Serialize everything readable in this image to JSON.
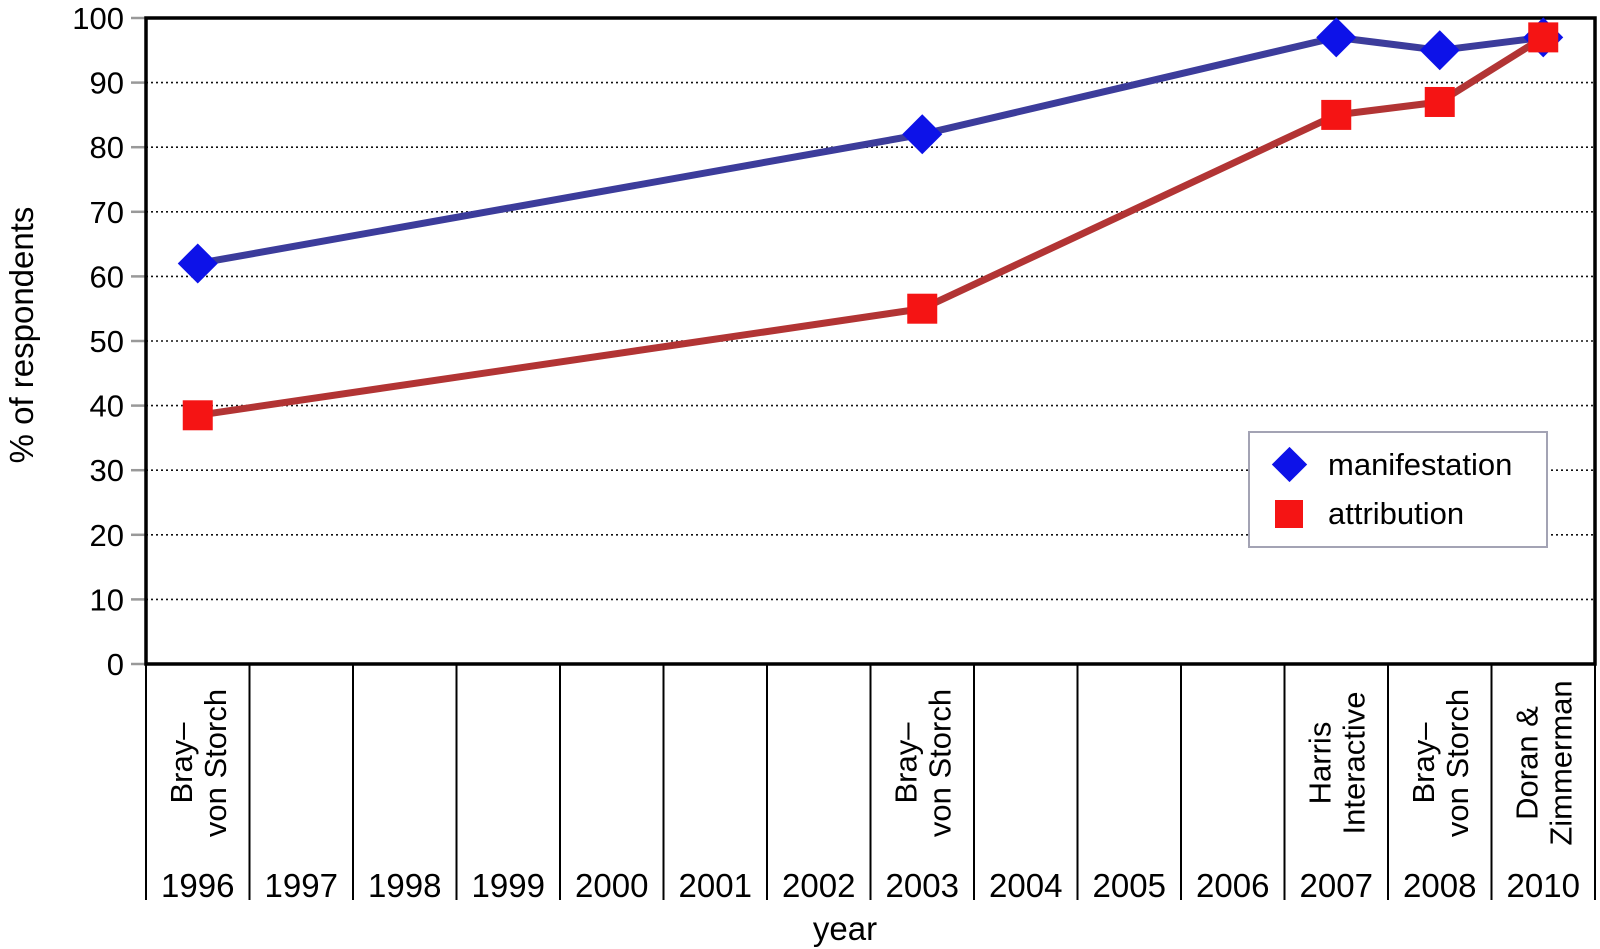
{
  "chart_data": {
    "type": "line",
    "title": "",
    "xlabel": "year",
    "ylabel": "% of respondents",
    "ylim": [
      0,
      100
    ],
    "ytick_step": 10,
    "grid": "horizontal dotted gridlines every 10, legend framed box middle-right",
    "legend_position": "middle-right",
    "categories": [
      "1996",
      "1997",
      "1998",
      "1999",
      "2000",
      "2001",
      "2002",
      "2003",
      "2004",
      "2005",
      "2006",
      "2007",
      "2008",
      "2010"
    ],
    "category_sources": {
      "1996": "Bray–\nvon Storch",
      "2003": "Bray–\nvon Storch",
      "2007": "Harris\nInteractive",
      "2008": "Bray–\nvon Storch",
      "2010": "Doran &\nZimmerman"
    },
    "series": [
      {
        "name": "manifestation",
        "marker": "diamond",
        "marker_color": "#0d12e8",
        "line_color": "#3c3c9b",
        "points": [
          {
            "x": "1996",
            "y": 62
          },
          {
            "x": "2003",
            "y": 82
          },
          {
            "x": "2007",
            "y": 97
          },
          {
            "x": "2008",
            "y": 95
          },
          {
            "x": "2010",
            "y": 97
          }
        ]
      },
      {
        "name": "attribution",
        "marker": "square",
        "marker_color": "#f51414",
        "line_color": "#b23434",
        "points": [
          {
            "x": "1996",
            "y": 38.5
          },
          {
            "x": "2003",
            "y": 55
          },
          {
            "x": "2007",
            "y": 85
          },
          {
            "x": "2008",
            "y": 87
          },
          {
            "x": "2010",
            "y": 97
          }
        ]
      }
    ],
    "colors": {
      "axis": "#000000",
      "tick": "#999999",
      "gridline": "#111111",
      "legend_border": "#a3a3b4",
      "background": "#ffffff"
    }
  }
}
